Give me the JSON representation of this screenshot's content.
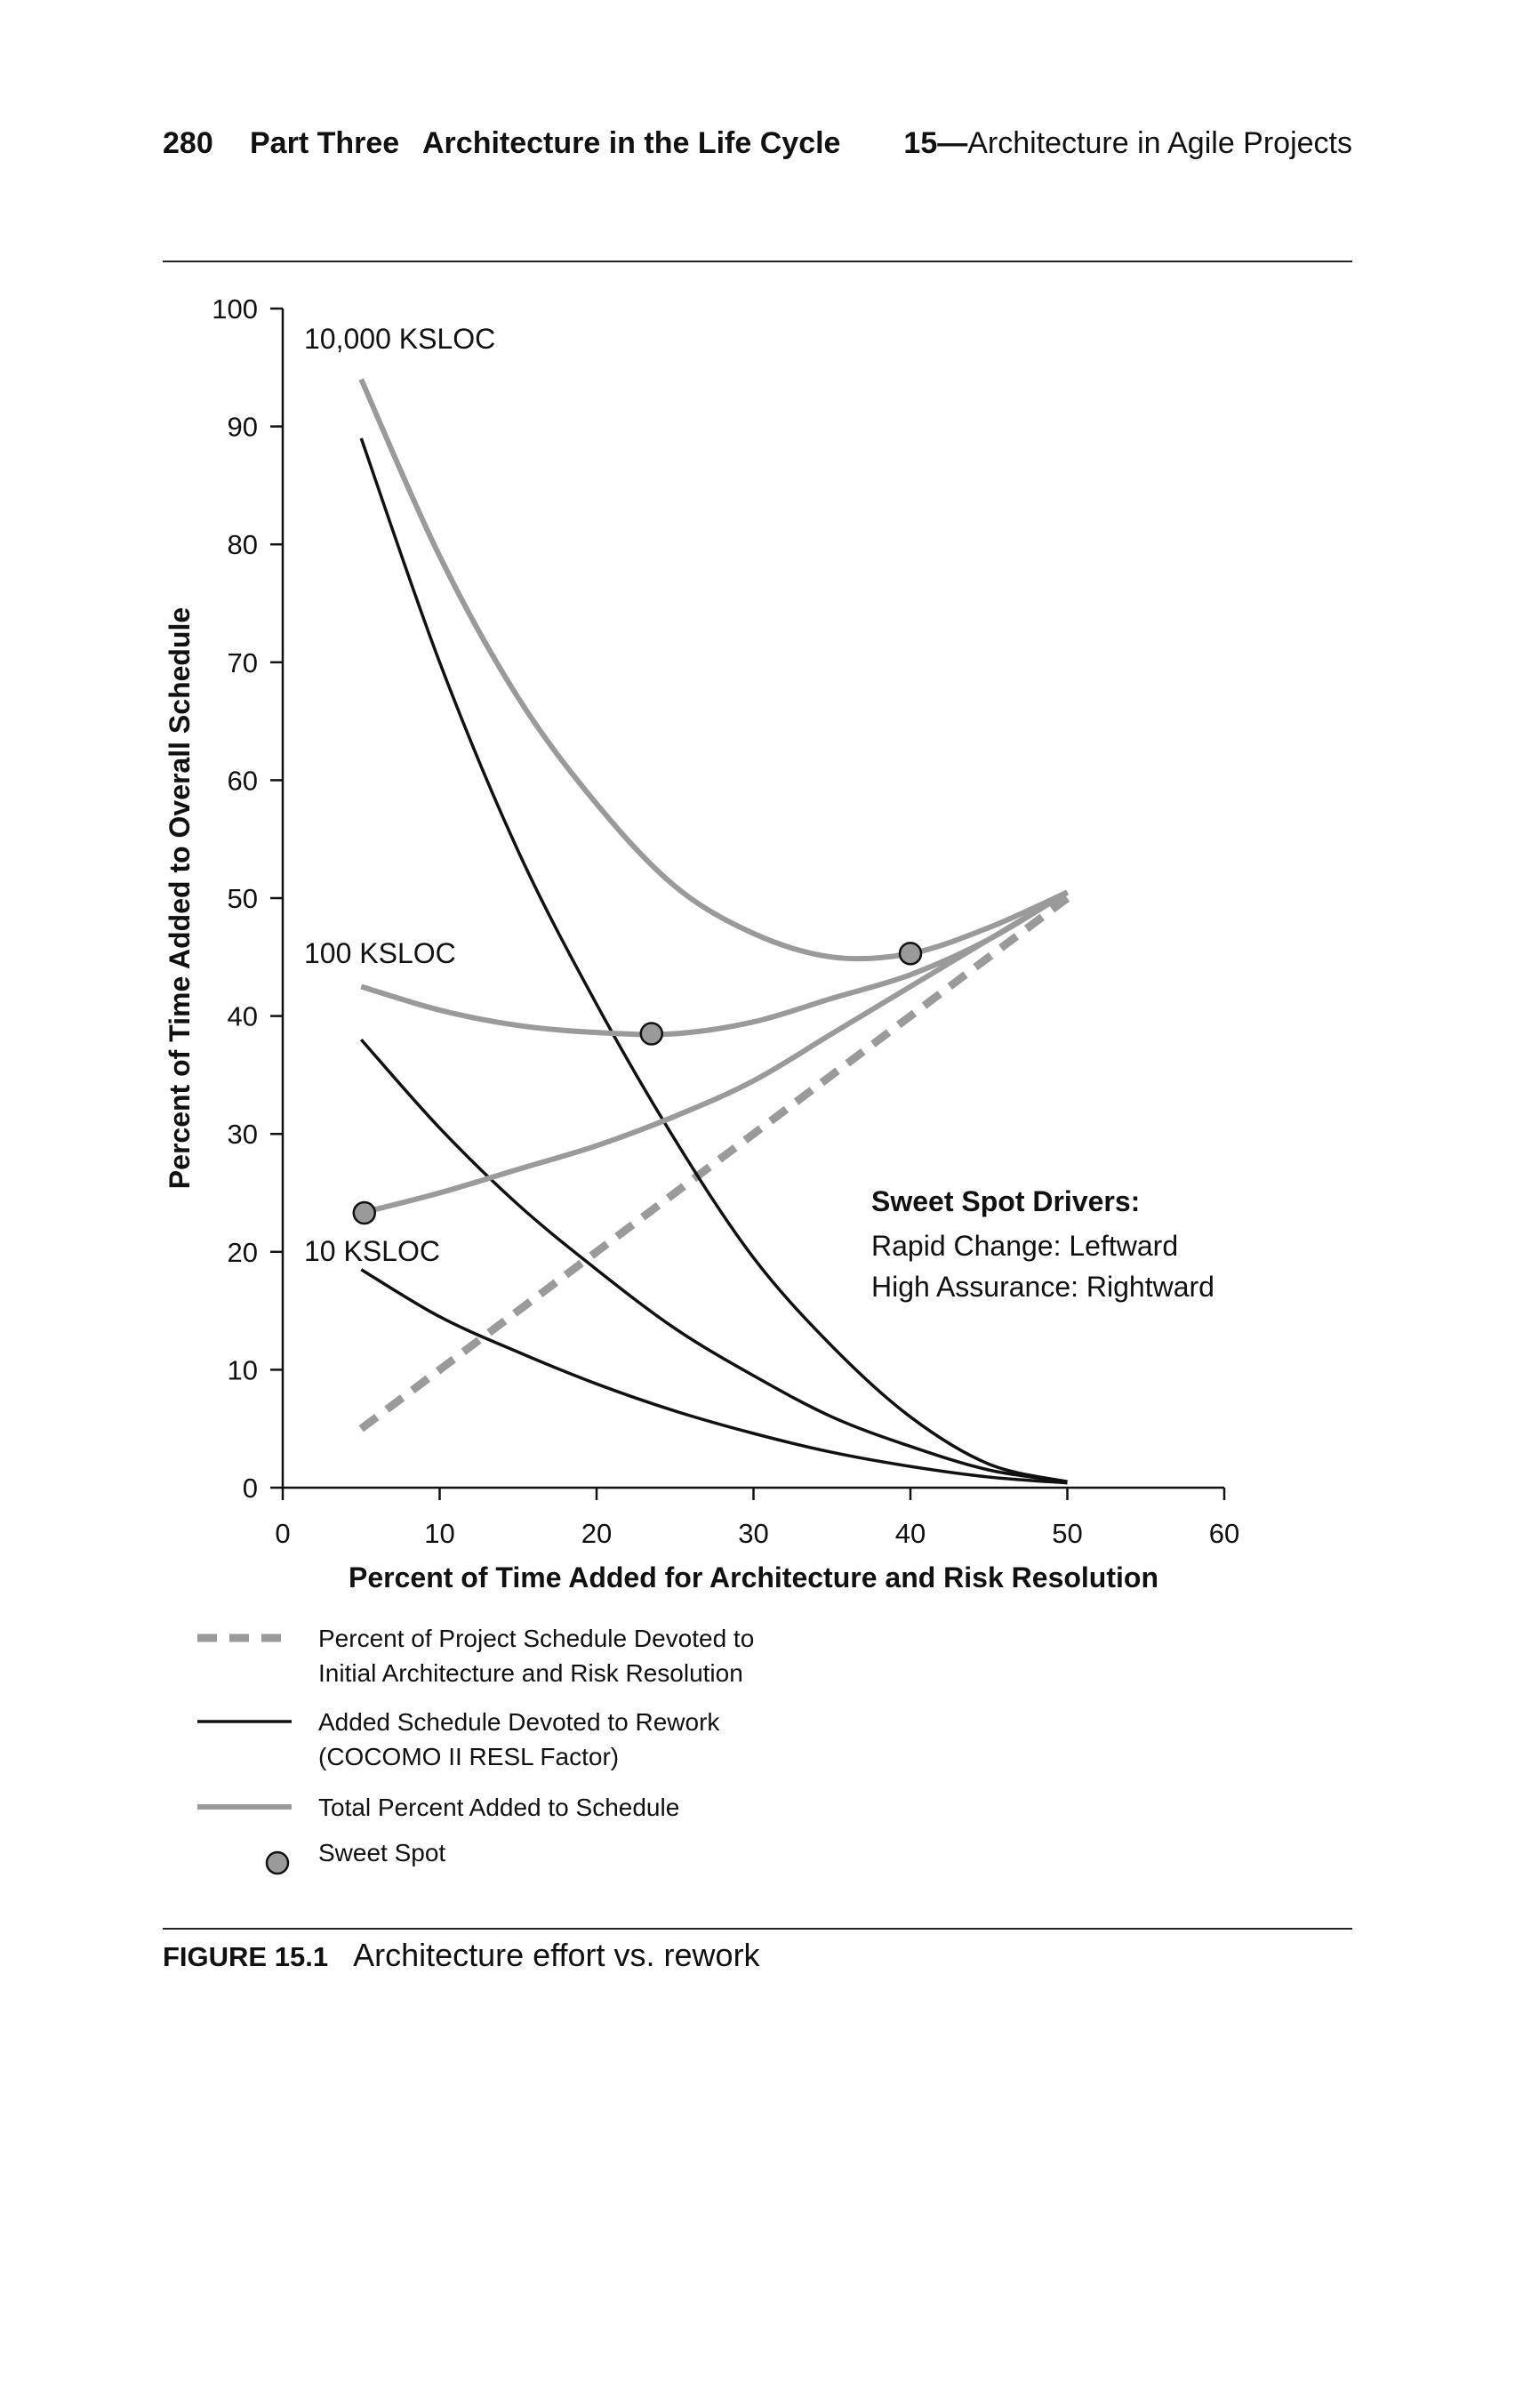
{
  "header": {
    "page_number": "280",
    "part": "Part Three",
    "part_title": "Architecture in the Life Cycle",
    "chapter_number": "15",
    "chapter_sep": "—",
    "chapter_title": "Architecture in Agile Projects"
  },
  "caption": {
    "label": "FIGURE 15.1",
    "text": "Architecture effort vs. rework"
  },
  "chart_data": {
    "type": "line",
    "xlabel": "Percent of Time Added for Architecture and Risk Resolution",
    "ylabel": "Percent of Time Added to Overall Schedule",
    "xlim": [
      0,
      60
    ],
    "ylim": [
      0,
      100
    ],
    "xticks": [
      0,
      10,
      20,
      30,
      40,
      50,
      60
    ],
    "yticks": [
      0,
      10,
      20,
      30,
      40,
      50,
      60,
      70,
      80,
      90,
      100
    ],
    "grid": false,
    "series": [
      {
        "name": "Percent of Project Schedule Devoted to Initial Architecture and Risk Resolution",
        "style": "dashed-gray",
        "color": "#9a9a9a",
        "x": [
          5,
          50
        ],
        "y": [
          5,
          50
        ]
      },
      {
        "name": "Added Schedule Devoted to Rework (COCOMO II RESL Factor)",
        "curve": "10,000 KSLOC",
        "style": "solid-black",
        "color": "#111111",
        "x": [
          5,
          10,
          15,
          20,
          25,
          30,
          35,
          40,
          45,
          50
        ],
        "y": [
          89,
          70,
          54,
          41,
          29.5,
          19.5,
          12,
          6,
          2,
          0.5
        ]
      },
      {
        "name": "Added Schedule Devoted to Rework (COCOMO II RESL Factor)",
        "curve": "100 KSLOC",
        "style": "solid-black",
        "color": "#111111",
        "x": [
          5,
          10,
          15,
          20,
          25,
          30,
          35,
          40,
          45,
          50
        ],
        "y": [
          38,
          30.5,
          24,
          18.5,
          13.5,
          9.5,
          6,
          3.5,
          1.5,
          0.5
        ]
      },
      {
        "name": "Added Schedule Devoted to Rework (COCOMO II RESL Factor)",
        "curve": "10 KSLOC",
        "style": "solid-black",
        "color": "#111111",
        "x": [
          5,
          10,
          15,
          20,
          25,
          30,
          35,
          40,
          45,
          50
        ],
        "y": [
          18.5,
          14.5,
          11.5,
          8.8,
          6.5,
          4.6,
          3,
          1.8,
          0.9,
          0.4
        ]
      },
      {
        "name": "Total Percent Added to Schedule",
        "curve": "10,000 KSLOC",
        "style": "solid-gray",
        "color": "#9a9a9a",
        "x": [
          5,
          10,
          15,
          20,
          25,
          30,
          35,
          40,
          45,
          50
        ],
        "y": [
          94,
          79,
          67,
          58,
          51,
          47,
          45,
          45.3,
          47.5,
          50.5
        ]
      },
      {
        "name": "Total Percent Added to Schedule",
        "curve": "100 KSLOC",
        "style": "solid-gray",
        "color": "#9a9a9a",
        "x": [
          5,
          10,
          15,
          20,
          25,
          30,
          35,
          40,
          45,
          50
        ],
        "y": [
          42.5,
          40.5,
          39.2,
          38.6,
          38.5,
          39.5,
          41.5,
          43.5,
          46.5,
          50.5
        ]
      },
      {
        "name": "Total Percent Added to Schedule",
        "curve": "10 KSLOC",
        "style": "solid-gray",
        "color": "#9a9a9a",
        "x": [
          5,
          10,
          15,
          20,
          25,
          30,
          35,
          40,
          45,
          50
        ],
        "y": [
          23.3,
          25,
          27,
          29,
          31.5,
          34.5,
          38.5,
          42.5,
          46.5,
          50.5
        ]
      }
    ],
    "sweet_spots": [
      {
        "x": 5.2,
        "y": 23.3
      },
      {
        "x": 23.5,
        "y": 38.5
      },
      {
        "x": 40,
        "y": 45.3
      }
    ],
    "curve_labels": [
      "10,000 KSLOC",
      "100 KSLOC",
      "10 KSLOC"
    ],
    "annotation": {
      "title": "Sweet Spot Drivers:",
      "lines": [
        "Rapid Change: Leftward",
        "High Assurance: Rightward"
      ]
    },
    "legend": [
      {
        "symbol": "dashed-gray",
        "lines": [
          "Percent of Project Schedule Devoted to",
          "Initial Architecture and Risk Resolution"
        ]
      },
      {
        "symbol": "solid-black",
        "lines": [
          "Added Schedule Devoted to Rework",
          "(COCOMO II RESL Factor)"
        ]
      },
      {
        "symbol": "solid-gray",
        "lines": [
          "Total Percent Added to Schedule"
        ]
      },
      {
        "symbol": "circle",
        "lines": [
          "Sweet Spot"
        ]
      }
    ],
    "legend_placement": "below"
  }
}
